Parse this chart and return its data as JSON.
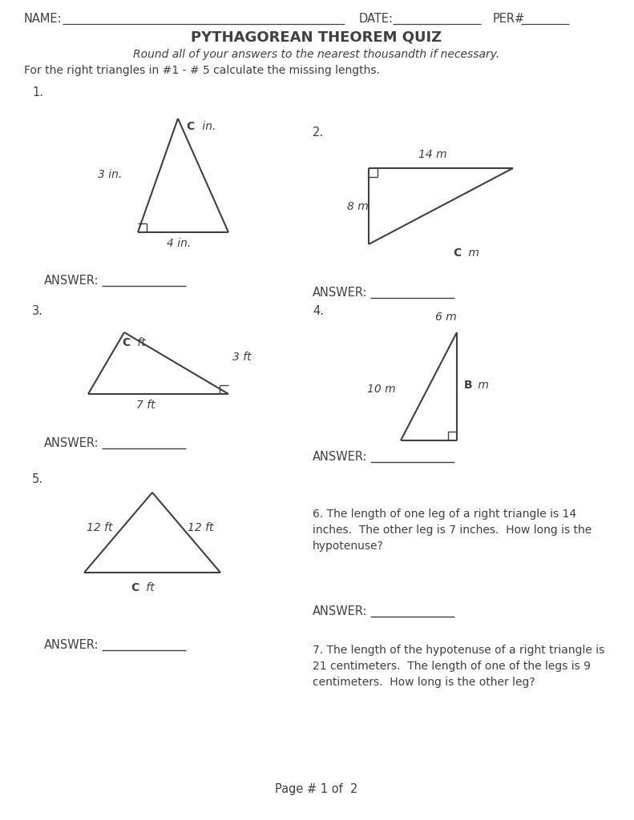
{
  "title": "PYTHAGOREAN THEOREM QUIZ",
  "subtitle": "Round all of your answers to the nearest thousandth if necessary.",
  "instruction": "For the right triangles in #1 - # 5 calculate the missing lengths.",
  "header_name": "NAME:",
  "header_date": "DATE:",
  "header_per": "PER#",
  "page_footer": "Page # 1 of  2",
  "q6_text": "6. The length of one leg of a right triangle is 14\ninches.  The other leg is 7 inches.  How long is the\nhypotenuse?",
  "q7_text": "7. The length of the hypotenuse of a right triangle is\n21 centimeters.  The length of one of the legs is 9\ncentimeters.  How long is the other leg?",
  "answer_label": "ANSWER:",
  "bg_color": "#ffffff",
  "text_color": "#404040",
  "line_color": "#404040"
}
